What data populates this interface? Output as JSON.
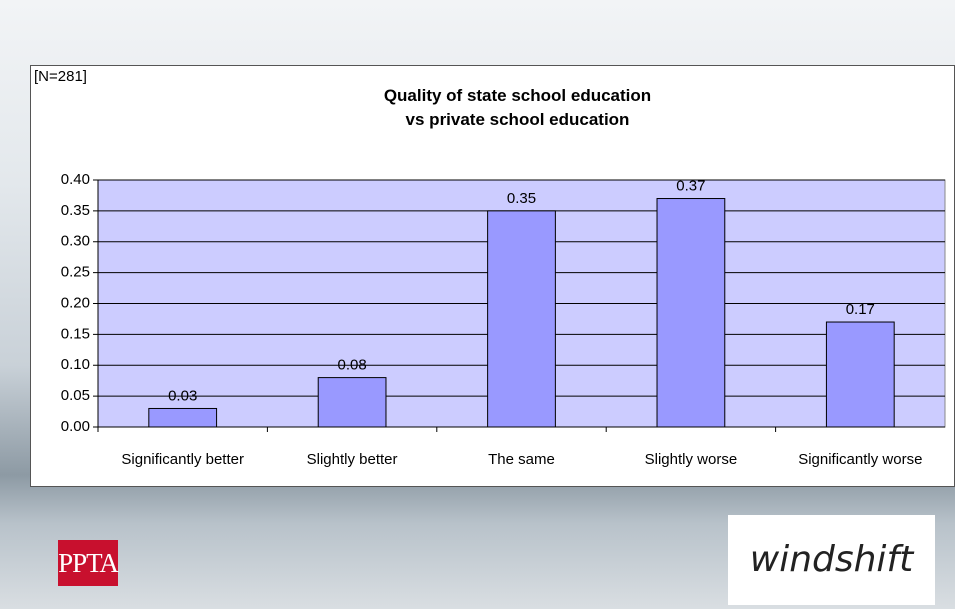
{
  "chart_data": {
    "type": "bar",
    "note": "[N=281]",
    "title": "Quality of state school education\nvs private school education",
    "categories": [
      "Significantly better",
      "Slightly better",
      "The same",
      "Slightly worse",
      "Significantly worse"
    ],
    "values": [
      0.03,
      0.08,
      0.35,
      0.37,
      0.17
    ],
    "color": "#9999ff",
    "plot_background": "#ccccff",
    "ylim": [
      0,
      0.4
    ],
    "yticks": [
      {
        "value": 0,
        "label": "0.00"
      },
      {
        "value": 0.05,
        "label": "0.05"
      },
      {
        "value": 0.1,
        "label": "0.10"
      },
      {
        "value": 0.15,
        "label": "0.15"
      },
      {
        "value": 0.2,
        "label": "0.20"
      },
      {
        "value": 0.25,
        "label": "0.25"
      },
      {
        "value": 0.3,
        "label": "0.30"
      },
      {
        "value": 0.35,
        "label": "0.35"
      },
      {
        "value": 0.4,
        "label": "0.40"
      }
    ],
    "grid": true
  },
  "logos": [
    "PPTA",
    "windshift"
  ]
}
